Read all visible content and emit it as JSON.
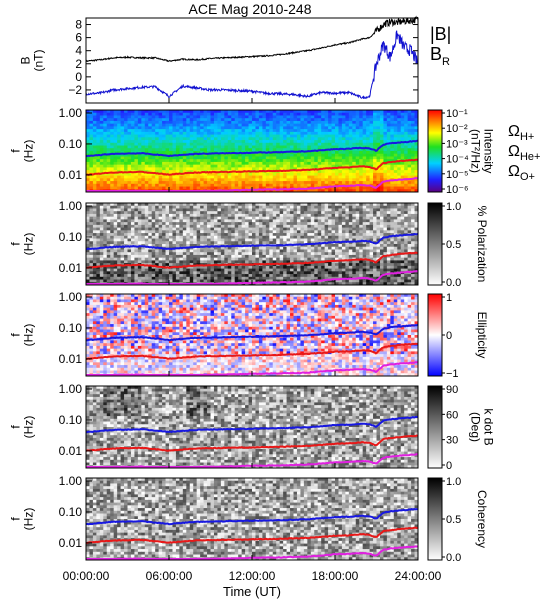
{
  "figure": {
    "title": "ACE Mag 2010-248"
  },
  "chart_data": [
    {
      "type": "line",
      "panel": "field",
      "ylabel": "B\n(nT)",
      "ylim": [
        -4,
        9
      ],
      "yticks": [
        -2,
        0,
        2,
        4,
        6,
        8
      ],
      "xlim": [
        0,
        24
      ],
      "legend": [
        {
          "label": "|B|",
          "color": "#000000"
        },
        {
          "label": "B",
          "sub": "R",
          "color": "#1010d0"
        }
      ],
      "series": [
        {
          "name": "|B|",
          "color": "#000000",
          "x": [
            0,
            1,
            2,
            3,
            4,
            5,
            6,
            7,
            8,
            9,
            10,
            11,
            12,
            13,
            14,
            15,
            16,
            17,
            18,
            19,
            20,
            20.5,
            21,
            21.5,
            22,
            22.5,
            23,
            23.5,
            24
          ],
          "y": [
            2.4,
            2.6,
            2.9,
            3.0,
            2.9,
            2.9,
            2.4,
            2.7,
            2.6,
            2.8,
            2.9,
            3.0,
            3.1,
            3.2,
            3.4,
            3.7,
            4.0,
            4.4,
            4.9,
            5.2,
            5.8,
            6.0,
            7.0,
            8.0,
            8.4,
            8.3,
            8.5,
            8.6,
            8.8
          ]
        },
        {
          "name": "B_R",
          "color": "#1010d0",
          "x": [
            0,
            1,
            2,
            3,
            4,
            5,
            6,
            7,
            8,
            9,
            10,
            11,
            12,
            13,
            14,
            15,
            16,
            17,
            18,
            19,
            20,
            20.5,
            21,
            21.5,
            22,
            22.5,
            23,
            23.5,
            24
          ],
          "y": [
            -2.6,
            -2.5,
            -2.0,
            -1.8,
            -1.6,
            -1.5,
            -3.0,
            -1.4,
            -1.7,
            -2.0,
            -2.0,
            -2.1,
            -2.2,
            -2.5,
            -2.6,
            -2.7,
            -3.0,
            -2.4,
            -2.5,
            -2.4,
            -3.2,
            -3.0,
            2.0,
            5.0,
            3.0,
            6.5,
            4.5,
            4.0,
            2.0
          ]
        }
      ]
    },
    {
      "type": "heatmap",
      "panel": "intensity",
      "ylabel": "f\n(Hz)",
      "yticks": [
        "1.00",
        "0.10",
        "0.01"
      ],
      "colorbar": {
        "label": "Intensity\n(nT²/Hz)",
        "ticks": [
          "10⁻¹",
          "10⁻²",
          "10⁻³",
          "10⁻⁴",
          "10⁻⁵",
          "10⁻⁶"
        ]
      }
    },
    {
      "type": "heatmap",
      "panel": "polarization",
      "ylabel": "f\n(Hz)",
      "yticks": [
        "1.00",
        "0.10",
        "0.01"
      ],
      "colorbar": {
        "label": "% Polarization",
        "ticks": [
          "1.0",
          "0.5",
          "0.0"
        ]
      }
    },
    {
      "type": "heatmap",
      "panel": "ellipticity",
      "ylabel": "f\n(Hz)",
      "yticks": [
        "1.00",
        "0.10",
        "0.01"
      ],
      "colorbar": {
        "label": "Ellipticity",
        "ticks": [
          "1",
          "0",
          "−1"
        ]
      }
    },
    {
      "type": "heatmap",
      "panel": "kdotb",
      "ylabel": "f\n(Hz)",
      "yticks": [
        "1.00",
        "0.10",
        "0.01"
      ],
      "colorbar": {
        "label": "k dot B\n(Deg)",
        "ticks": [
          "90",
          "60",
          "30",
          "0"
        ]
      }
    },
    {
      "type": "heatmap",
      "panel": "coherency",
      "ylabel": "f\n(Hz)",
      "yticks": [
        "1.00",
        "0.10",
        "0.01"
      ],
      "colorbar": {
        "label": "Coherency",
        "ticks": [
          "1.0",
          "0.5",
          "0.0"
        ]
      }
    }
  ],
  "gyrofrequencies": {
    "legend": [
      {
        "label": "Ω",
        "sub": "H+",
        "color": "#1818e0"
      },
      {
        "label": "Ω",
        "sub": "He+",
        "color": "#e81818"
      },
      {
        "label": "Ω",
        "sub": "O+",
        "color": "#e020e0"
      }
    ],
    "x": [
      0,
      2,
      4,
      6,
      8,
      10,
      12,
      14,
      16,
      17,
      18,
      19,
      20,
      20.5,
      21,
      21.5,
      22,
      23,
      24
    ],
    "h_plus": [
      0.04,
      0.048,
      0.05,
      0.041,
      0.048,
      0.05,
      0.052,
      0.054,
      0.058,
      0.062,
      0.068,
      0.07,
      0.075,
      0.072,
      0.06,
      0.095,
      0.105,
      0.115,
      0.125
    ],
    "he_plus": [
      0.01,
      0.012,
      0.0125,
      0.0102,
      0.012,
      0.0125,
      0.013,
      0.0135,
      0.0145,
      0.0155,
      0.017,
      0.0175,
      0.019,
      0.018,
      0.015,
      0.024,
      0.026,
      0.029,
      0.031
    ],
    "o_plus": [
      0.0025,
      0.003,
      0.0031,
      0.0026,
      0.003,
      0.0031,
      0.0033,
      0.0034,
      0.0036,
      0.0039,
      0.0043,
      0.0044,
      0.0047,
      0.0045,
      0.0038,
      0.006,
      0.0066,
      0.0072,
      0.0078
    ]
  },
  "xaxis": {
    "label": "Time (UT)",
    "xlim": [
      0,
      24
    ],
    "ticks": [
      {
        "value": 0,
        "label": "00:00:00"
      },
      {
        "value": 6,
        "label": "06:00:00"
      },
      {
        "value": 12,
        "label": "12:00:00"
      },
      {
        "value": 18,
        "label": "18:00:00"
      },
      {
        "value": 24,
        "label": "24:00:00"
      }
    ]
  }
}
